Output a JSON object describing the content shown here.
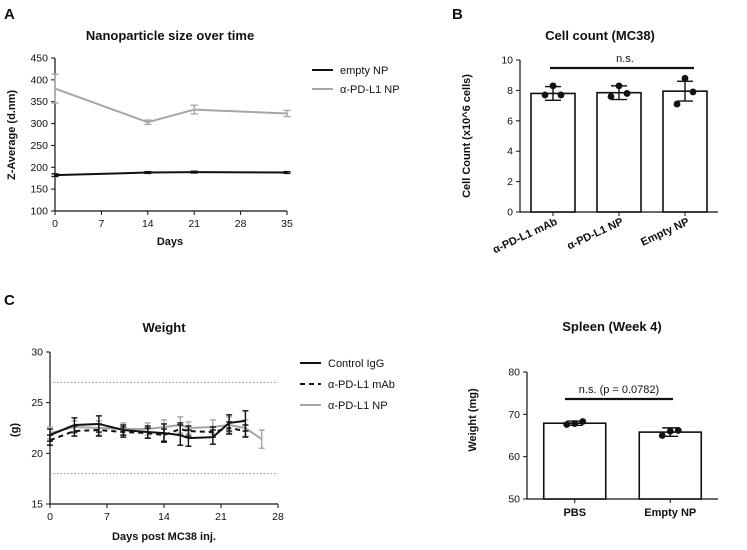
{
  "panels": {
    "A": {
      "letter": "A"
    },
    "B": {
      "letter": "B"
    },
    "C": {
      "letter": "C"
    }
  },
  "chart_data": [
    {
      "id": "size",
      "type": "line",
      "title": "Nanoparticle size over time",
      "xlabel": "Days",
      "ylabel": "Z-Average (d.nm)",
      "xlim": [
        0,
        35
      ],
      "ylim": [
        100,
        450
      ],
      "xticks": [
        0,
        7,
        14,
        21,
        28,
        35
      ],
      "yticks": [
        100,
        150,
        200,
        250,
        300,
        350,
        400,
        450
      ],
      "legend_position": "top-right",
      "series": [
        {
          "name": "empty NP",
          "color": "#111111",
          "x": [
            0,
            14,
            21,
            35
          ],
          "y": [
            182,
            188,
            189,
            188
          ],
          "err": [
            3,
            2,
            2,
            2
          ]
        },
        {
          "name": "α-PD-L1 NP",
          "color": "#a6a6a6",
          "x": [
            0,
            14,
            21,
            35
          ],
          "y": [
            380,
            303,
            332,
            323
          ],
          "err": [
            33,
            5,
            10,
            7
          ]
        }
      ]
    },
    {
      "id": "cellcount",
      "type": "bar",
      "title": "Cell count (MC38)",
      "ylabel": "Cell Count (x10^6 cells)",
      "ylim": [
        0,
        10
      ],
      "yticks": [
        0,
        2,
        4,
        6,
        8,
        10
      ],
      "categories": [
        "α-PD-L1 mAb",
        "α-PD-L1 NP",
        "Empty NP"
      ],
      "values": [
        7.8,
        7.85,
        7.95
      ],
      "errors": [
        0.45,
        0.45,
        0.65
      ],
      "points": [
        [
          7.7,
          7.7,
          8.3
        ],
        [
          7.6,
          7.8,
          8.3
        ],
        [
          7.1,
          7.9,
          8.8
        ]
      ],
      "significance": "n.s."
    },
    {
      "id": "weight",
      "type": "line",
      "title": "Weight",
      "xlabel": "Days post MC38 inj.",
      "ylabel": "(g)",
      "xlim": [
        0,
        28
      ],
      "ylim": [
        15,
        30
      ],
      "xticks": [
        0,
        7,
        14,
        21,
        28
      ],
      "yticks": [
        15,
        20,
        25,
        30
      ],
      "reference_lines": [
        18,
        27
      ],
      "legend_position": "top-right",
      "series": [
        {
          "name": "Control IgG",
          "color": "#111111",
          "dash": "",
          "x": [
            0,
            3,
            6,
            9,
            12,
            14,
            16,
            17,
            20,
            22,
            24
          ],
          "y": [
            21.8,
            22.8,
            22.9,
            22.3,
            22.1,
            22.0,
            21.8,
            21.5,
            21.6,
            23.0,
            23.2
          ],
          "err": [
            0.6,
            0.7,
            0.8,
            0.5,
            0.6,
            0.9,
            1.0,
            0.8,
            0.7,
            0.8,
            1.0
          ]
        },
        {
          "name": "α-PD-L1 mAb",
          "color": "#111111",
          "dash": "5,4",
          "x": [
            0,
            3,
            6,
            9,
            12,
            14,
            16,
            17,
            20,
            22,
            24
          ],
          "y": [
            21.3,
            22.2,
            22.3,
            22.1,
            22.0,
            21.8,
            22.4,
            22.2,
            22.1,
            22.5,
            22.2
          ],
          "err": [
            0.5,
            0.5,
            0.6,
            0.5,
            0.5,
            0.6,
            0.6,
            0.5,
            0.5,
            0.6,
            0.6
          ]
        },
        {
          "name": "α-PD-L1 NP",
          "color": "#a6a6a6",
          "dash": "",
          "x": [
            0,
            3,
            6,
            9,
            12,
            14,
            16,
            17,
            20,
            22,
            24,
            26
          ],
          "y": [
            22.0,
            22.6,
            22.5,
            22.4,
            22.4,
            22.6,
            22.8,
            22.5,
            22.6,
            22.8,
            22.5,
            21.4
          ],
          "err": [
            0.6,
            0.6,
            0.7,
            0.6,
            0.6,
            0.7,
            0.8,
            0.6,
            0.7,
            0.8,
            0.8,
            0.9
          ]
        }
      ]
    },
    {
      "id": "spleen",
      "type": "bar",
      "title": "Spleen (Week 4)",
      "ylabel": "Weight (mg)",
      "ylim": [
        50,
        80
      ],
      "yticks": [
        50,
        60,
        70,
        80
      ],
      "categories": [
        "PBS",
        "Empty NP"
      ],
      "values": [
        67.9,
        65.8
      ],
      "errors": [
        0.5,
        1.0
      ],
      "points": [
        [
          67.6,
          68.3,
          67.8
        ],
        [
          65.0,
          66.2,
          66.0
        ]
      ],
      "significance": "n.s. (p = 0.0782)"
    }
  ]
}
